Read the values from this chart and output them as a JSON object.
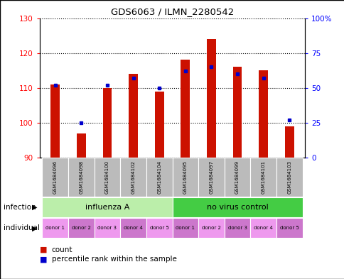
{
  "title": "GDS6063 / ILMN_2280542",
  "samples": [
    "GSM1684096",
    "GSM1684098",
    "GSM1684100",
    "GSM1684102",
    "GSM1684104",
    "GSM1684095",
    "GSM1684097",
    "GSM1684099",
    "GSM1684101",
    "GSM1684103"
  ],
  "count_values": [
    111,
    97,
    110,
    114,
    109,
    118,
    124,
    116,
    115,
    99
  ],
  "percentile_values": [
    52,
    25,
    52,
    57,
    50,
    62,
    65,
    60,
    57,
    27
  ],
  "ylim_left": [
    90,
    130
  ],
  "ylim_right": [
    0,
    100
  ],
  "yticks_left": [
    90,
    100,
    110,
    120,
    130
  ],
  "yticks_right": [
    0,
    25,
    50,
    75,
    100
  ],
  "bar_color": "#cc1100",
  "percentile_color": "#0000cc",
  "infection_groups": [
    {
      "label": "influenza A",
      "start": 0,
      "end": 5,
      "color": "#bbeeaa"
    },
    {
      "label": "no virus control",
      "start": 5,
      "end": 10,
      "color": "#44cc44"
    }
  ],
  "individual_labels": [
    "donor 1",
    "donor 2",
    "donor 3",
    "donor 4",
    "donor 5",
    "donor 1",
    "donor 2",
    "donor 3",
    "donor 4",
    "donor 5"
  ],
  "individual_color_odd": "#cc77cc",
  "individual_color_even": "#ee99ee",
  "infection_label": "infection",
  "individual_label": "individual",
  "legend_count": "count",
  "legend_percentile": "percentile rank within the sample",
  "background_color": "#ffffff",
  "plot_bg_color": "#ffffff",
  "bar_bottom": 90,
  "bar_width": 0.35,
  "sample_box_color": "#bbbbbb"
}
